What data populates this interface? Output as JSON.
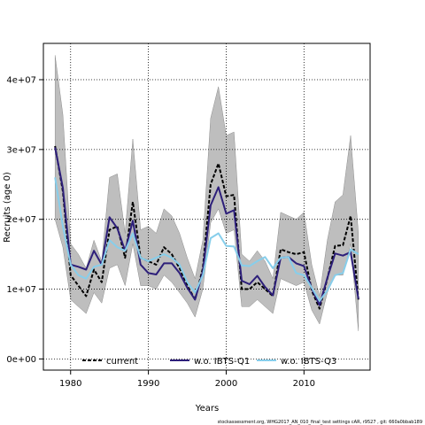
{
  "chart_data": {
    "type": "line",
    "xlabel": "Years",
    "ylabel": "Recruits (age 0)",
    "xlim": [
      1976.5,
      2018.5
    ],
    "ylim": [
      -1600000,
      45200000
    ],
    "xticks": [
      1980,
      1990,
      2000,
      2010
    ],
    "xtick_labels": [
      "1980",
      "1990",
      "2000",
      "2010"
    ],
    "yticks": [
      0,
      10000000,
      20000000,
      30000000,
      40000000
    ],
    "ytick_labels": [
      "0e+00",
      "1e+07",
      "2e+07",
      "3e+07",
      "4e+07"
    ],
    "grid": "dotted",
    "legend_position": "bottom",
    "x": [
      1978,
      1979,
      1980,
      1981,
      1982,
      1983,
      1984,
      1985,
      1986,
      1987,
      1988,
      1989,
      1990,
      1991,
      1992,
      1993,
      1994,
      1995,
      1996,
      1997,
      1998,
      1999,
      2000,
      2001,
      2002,
      2003,
      2004,
      2005,
      2006,
      2007,
      2008,
      2009,
      2010,
      2011,
      2012,
      2013,
      2014,
      2015,
      2016,
      2017
    ],
    "confidence_band": {
      "upper": [
        43500000,
        35000000,
        16500000,
        15000000,
        13000000,
        17000000,
        14000000,
        26000000,
        26500000,
        18000000,
        31500000,
        18500000,
        19000000,
        18000000,
        21500000,
        20500000,
        18000000,
        14500000,
        11500000,
        17000000,
        34500000,
        39000000,
        32000000,
        32500000,
        15000000,
        14000000,
        15500000,
        14000000,
        11500000,
        21000000,
        20500000,
        20000000,
        21000000,
        13500000,
        9000000,
        17000000,
        22500000,
        23500000,
        32000000,
        18000000
      ],
      "lower": [
        20000000,
        16000000,
        8500000,
        7500000,
        6500000,
        9500000,
        8000000,
        13000000,
        13500000,
        10500000,
        16500000,
        10500000,
        10500000,
        10000000,
        12000000,
        11000000,
        9500000,
        8000000,
        6000000,
        10000000,
        19500000,
        21500000,
        18000000,
        18500000,
        7500000,
        7500000,
        8500000,
        7500000,
        6500000,
        11500000,
        11000000,
        10500000,
        11000000,
        7000000,
        5000000,
        9500000,
        12000000,
        12000000,
        16500000,
        4000000
      ],
      "color": "#bebebe"
    },
    "series": [
      {
        "name": "current",
        "color": "#000000",
        "dash": "dashed",
        "values": [
          30500000,
          24000000,
          12000000,
          10500000,
          9000000,
          12800000,
          11000000,
          18500000,
          19000000,
          14500000,
          22500000,
          14500000,
          14000000,
          13500000,
          16000000,
          15000000,
          13000000,
          10500000,
          8500000,
          13000000,
          25000000,
          28000000,
          23300000,
          23500000,
          10000000,
          10000000,
          11000000,
          10000000,
          9000000,
          15700000,
          15300000,
          15000000,
          15300000,
          9800000,
          7200000,
          11500000,
          16200000,
          16300000,
          20500000,
          8500000
        ]
      },
      {
        "name": "w.o. IBTS-Q1",
        "color": "#2d1f7a",
        "dash": "solid",
        "values": [
          30300000,
          24500000,
          13500000,
          13200000,
          12800000,
          15500000,
          13500000,
          20300000,
          18700000,
          15500000,
          19800000,
          13500000,
          12300000,
          12100000,
          13700000,
          13700000,
          12300000,
          10200000,
          8500000,
          12500000,
          22000000,
          24600000,
          20800000,
          21300000,
          11200000,
          10700000,
          11900000,
          10300000,
          9100000,
          14500000,
          14600000,
          13700000,
          13300000,
          10100000,
          7700000,
          11600000,
          15100000,
          14800000,
          15300000,
          8600000
        ]
      },
      {
        "name": "w.o. IBTS-Q3",
        "color": "#87ceeb",
        "dash": "solid",
        "values": [
          26000000,
          19000000,
          13500000,
          12000000,
          11500000,
          13200000,
          13500000,
          17000000,
          16000000,
          15500000,
          18000000,
          14500000,
          14000000,
          14500000,
          15000000,
          14500000,
          13500000,
          11000000,
          9500000,
          12000000,
          17300000,
          18000000,
          16200000,
          16100000,
          13400000,
          13300000,
          14000000,
          14600000,
          13000000,
          14500000,
          14600000,
          12300000,
          12000000,
          10200000,
          8300000,
          9800000,
          12000000,
          12300000,
          15700000,
          15000000
        ]
      }
    ],
    "footer": "stockassessment.org,  WHG2017_AN_010_final_test  settings  cAR, r9527 , git: 660a0bbab189"
  }
}
